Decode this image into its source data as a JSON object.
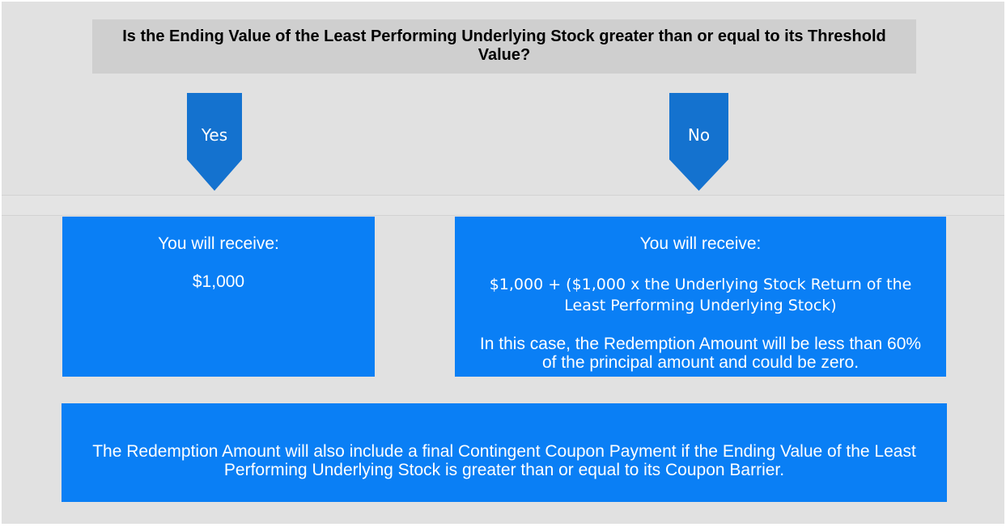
{
  "question": {
    "text": "Is the Ending Value of the Least Performing Underlying Stock greater than or equal to its Threshold Value?"
  },
  "branches": {
    "yes": {
      "arrow_label": "Yes",
      "heading": "You will receive:",
      "amount": "$1,000"
    },
    "no": {
      "arrow_label": "No",
      "heading": "You will receive:",
      "formula": "$1,000 + ($1,000 x the Underlying Stock Return of the Least Performing Underlying Stock)",
      "note": "In this case, the Redemption Amount will be less than 60% of the principal amount and could be zero."
    }
  },
  "footer": {
    "text": "The Redemption Amount will also include a final Contingent Coupon Payment if the Ending Value of the Least Performing Underlying Stock is greater than or equal to its Coupon Barrier."
  },
  "colors": {
    "background": "#e1e1e1",
    "question_box": "#cfcfcf",
    "arrow": "#1472cf",
    "outcome_box": "#0a7ff5",
    "text_on_blue": "#ffffff"
  }
}
